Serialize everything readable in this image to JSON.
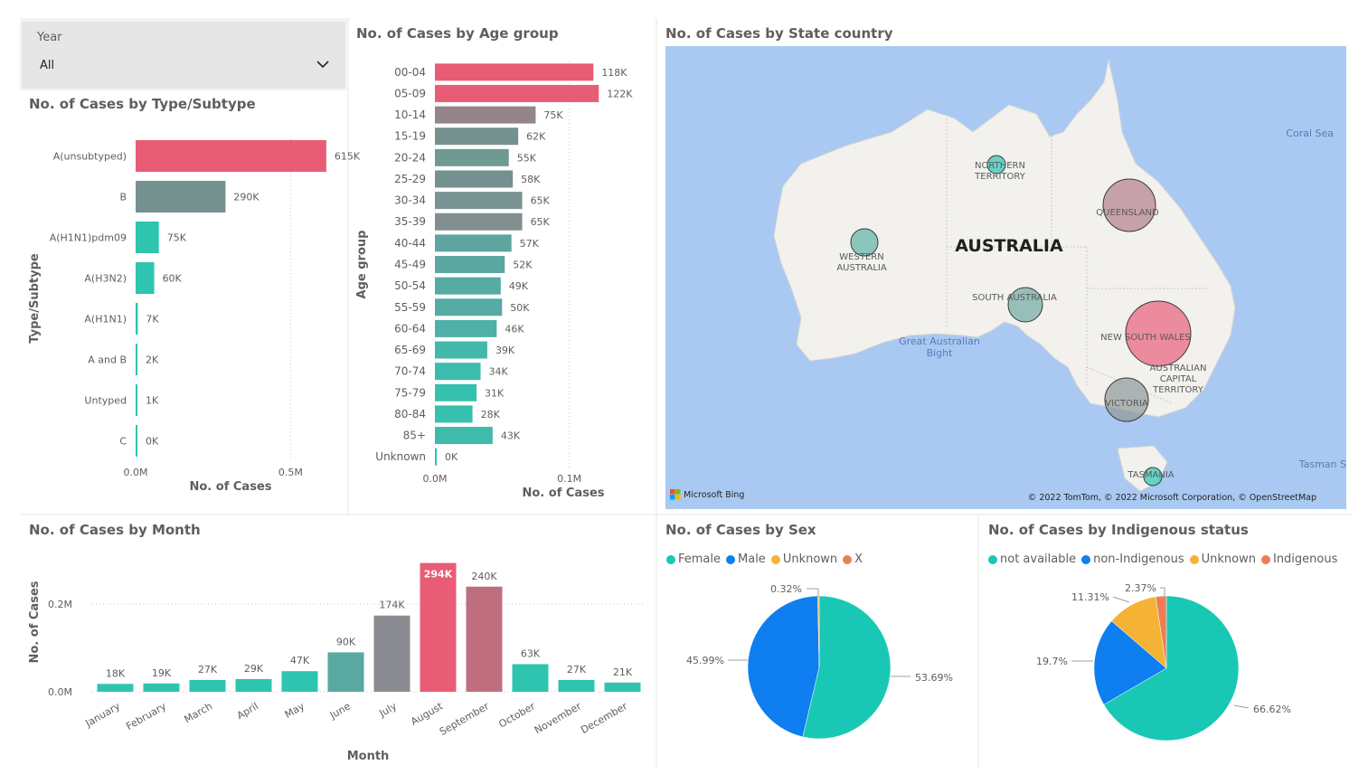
{
  "slicer": {
    "label": "Year",
    "value": "All"
  },
  "titles": {
    "type": "No. of Cases by Type/Subtype",
    "age": "No. of Cases by Age group",
    "state": "No. of Cases by State country",
    "month": "No. of Cases by Month",
    "sex": "No. of Cases by Sex",
    "indigenous": "No. of Cases by Indigenous status"
  },
  "map": {
    "country_label": "AUSTRALIA",
    "attribution": "© 2022 TomTom, © 2022 Microsoft Corporation, © OpenStreetMap",
    "provider": "Microsoft Bing",
    "sea_labels": [
      "Coral Sea",
      "Great Australian Bight",
      "Tasman S"
    ],
    "region_labels": [
      "NORTHERN TERRITORY",
      "QUEENSLAND",
      "WESTERN AUSTRALIA",
      "SOUTH AUSTRALIA",
      "NEW SOUTH WALES",
      "AUSTRALIAN CAPITAL TERRITORY",
      "VICTORIA",
      "TASMANIA"
    ],
    "colors": {
      "water": "#a9c9f2",
      "land": "#f2f1ee"
    }
  },
  "chart_data": [
    {
      "id": "type",
      "type": "bar",
      "orientation": "horizontal",
      "xlabel": "No. of Cases",
      "ylabel": "Type/Subtype",
      "xlim": [
        0,
        700000
      ],
      "ticks": [
        0,
        500000
      ],
      "tick_labels": [
        "0.0M",
        "0.5M"
      ],
      "categories": [
        "A(unsubtyped)",
        "B",
        "A(H1N1)pdm09",
        "A(H3N2)",
        "A(H1N1)",
        "A and B",
        "Untyped",
        "C"
      ],
      "values": [
        615000,
        290000,
        75000,
        60000,
        7000,
        2000,
        1000,
        0
      ],
      "labels": [
        "615K",
        "290K",
        "75K",
        "60K",
        "7K",
        "2K",
        "1K",
        "0K"
      ],
      "colors": [
        "#e85d75",
        "#74918f",
        "#2ec4b0",
        "#2ec4b0",
        "#2ec4b0",
        "#2ec4b0",
        "#2ec4b0",
        "#2ec4b0"
      ]
    },
    {
      "id": "age",
      "type": "bar",
      "orientation": "horizontal",
      "xlabel": "No. of Cases",
      "ylabel": "Age group",
      "xlim": [
        0,
        140000
      ],
      "ticks": [
        0,
        100000
      ],
      "tick_labels": [
        "0.0M",
        "0.1M"
      ],
      "categories": [
        "00-04",
        "05-09",
        "10-14",
        "15-19",
        "20-24",
        "25-29",
        "30-34",
        "35-39",
        "40-44",
        "45-49",
        "50-54",
        "55-59",
        "60-64",
        "65-69",
        "70-74",
        "75-79",
        "80-84",
        "85+",
        "Unknown"
      ],
      "values": [
        118000,
        122000,
        75000,
        62000,
        55000,
        58000,
        65000,
        65000,
        57000,
        52000,
        49000,
        50000,
        46000,
        39000,
        34000,
        31000,
        28000,
        43000,
        0
      ],
      "labels": [
        "118K",
        "122K",
        "75K",
        "62K",
        "55K",
        "58K",
        "65K",
        "65K",
        "57K",
        "52K",
        "49K",
        "50K",
        "46K",
        "39K",
        "34K",
        "31K",
        "28K",
        "43K",
        "0K"
      ],
      "colors": [
        "#e85d75",
        "#e85d75",
        "#948589",
        "#74918f",
        "#6f9993",
        "#74918f",
        "#7a9393",
        "#818f90",
        "#5fa49f",
        "#5aa7a1",
        "#55aaa3",
        "#55aaa3",
        "#4eb0a7",
        "#42b8ab",
        "#3cbcac",
        "#36c0ae",
        "#36c0ae",
        "#40bbab",
        "#2ec4b0"
      ]
    },
    {
      "id": "month",
      "type": "bar",
      "orientation": "vertical",
      "xlabel": "Month",
      "ylabel": "No. of Cases",
      "ylim": [
        0,
        320000
      ],
      "ticks": [
        0,
        200000
      ],
      "tick_labels": [
        "0.0M",
        "0.2M"
      ],
      "categories": [
        "January",
        "February",
        "March",
        "April",
        "May",
        "June",
        "July",
        "August",
        "September",
        "October",
        "November",
        "December"
      ],
      "values": [
        18000,
        19000,
        27000,
        29000,
        47000,
        90000,
        174000,
        294000,
        240000,
        63000,
        27000,
        21000
      ],
      "labels": [
        "18K",
        "19K",
        "27K",
        "29K",
        "47K",
        "90K",
        "174K",
        "294K",
        "240K",
        "63K",
        "27K",
        "21K"
      ],
      "colors": [
        "#2ec4b0",
        "#2ec4b0",
        "#2ec4b0",
        "#2ec4b0",
        "#2ec4b0",
        "#5aa8a2",
        "#8a8c91",
        "#e85d75",
        "#bf6e80",
        "#2ec4b0",
        "#2ec4b0",
        "#2ec4b0"
      ]
    },
    {
      "id": "sex",
      "type": "pie",
      "categories": [
        "Female",
        "Male",
        "Unknown",
        "X"
      ],
      "values": [
        53.69,
        45.99,
        0.32,
        0.0
      ],
      "labels": [
        "53.69%",
        "45.99%",
        "0.32%",
        ""
      ],
      "colors": [
        "#19c8b4",
        "#0e7ef0",
        "#f5b335",
        "#ef7e54"
      ]
    },
    {
      "id": "indigenous",
      "type": "pie",
      "categories": [
        "not available",
        "non-Indigenous",
        "Unknown",
        "Indigenous"
      ],
      "values": [
        66.62,
        19.7,
        11.31,
        2.37
      ],
      "labels": [
        "66.62%",
        "19.7%",
        "11.31%",
        "2.37%"
      ],
      "colors": [
        "#19c8b4",
        "#0e7ef0",
        "#f5b335",
        "#ef7e54"
      ]
    },
    {
      "id": "state",
      "type": "scatter",
      "categories": [
        "NORTHERN TERRITORY",
        "QUEENSLAND",
        "WESTERN AUSTRALIA",
        "SOUTH AUSTRALIA",
        "NEW SOUTH WALES",
        "VICTORIA",
        "TASMANIA"
      ],
      "colors": [
        "#2ec4b0",
        "#b57f8c",
        "#5fb3a8",
        "#6fa9a4",
        "#e8607a",
        "#8f9898",
        "#2ec4b0"
      ]
    }
  ]
}
